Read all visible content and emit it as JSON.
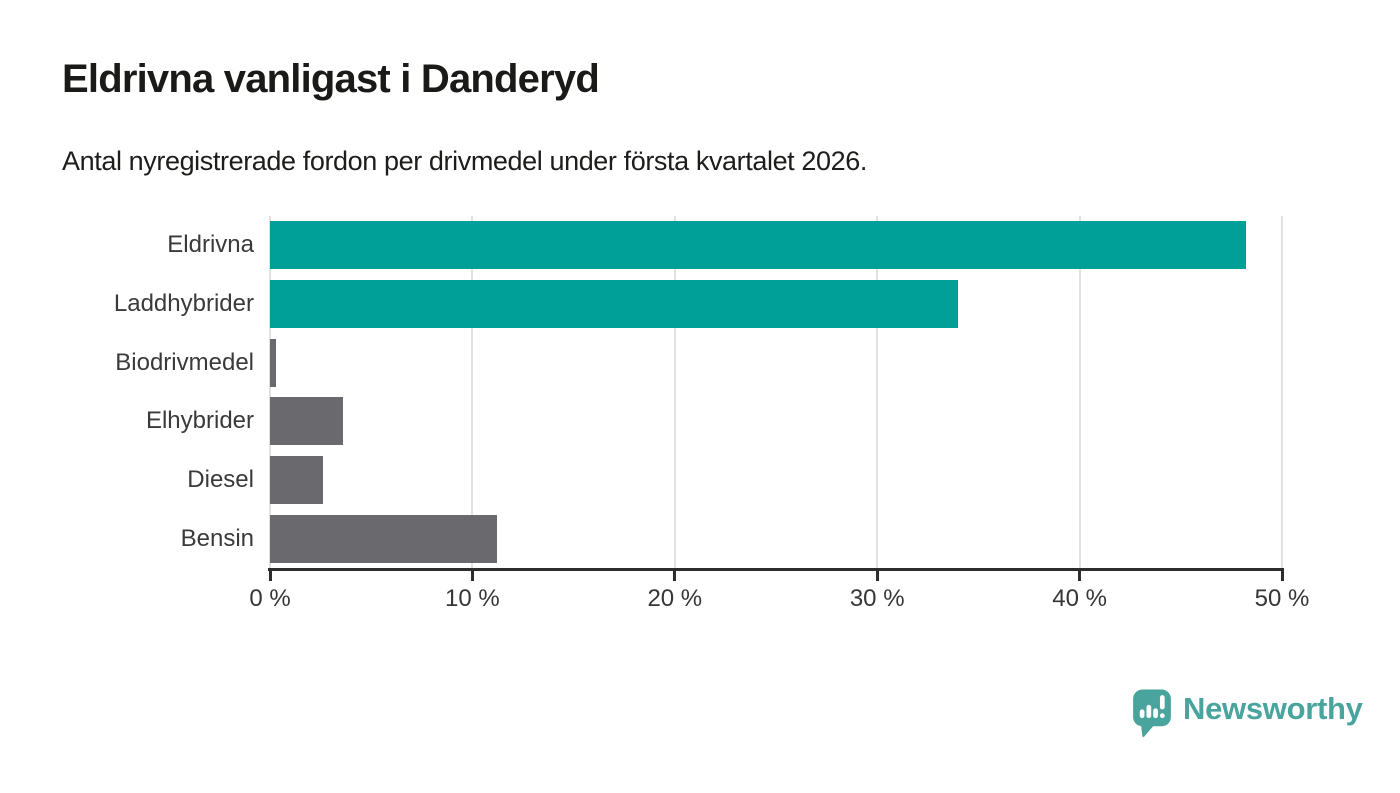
{
  "header": {
    "title": "Eldrivna vanligast i Danderyd",
    "subtitle": "Antal nyregistrerade fordon per drivmedel under första kvartalet 2026."
  },
  "chart_data": {
    "type": "bar",
    "orientation": "horizontal",
    "title": "Eldrivna vanligast i Danderyd",
    "subtitle": "Antal nyregistrerade fordon per drivmedel under första kvartalet 2026.",
    "categories": [
      "Eldrivna",
      "Laddhybrider",
      "Biodrivmedel",
      "Elhybrider",
      "Diesel",
      "Bensin"
    ],
    "values": [
      48.2,
      34.0,
      0.3,
      3.6,
      2.6,
      11.2
    ],
    "unit": "%",
    "series_colors": [
      "#00a099",
      "#00a099",
      "#6a6a6e",
      "#6a6a6e",
      "#6a6a6e",
      "#6a6a6e"
    ],
    "highlight_color": "#00a099",
    "default_color": "#6a6a6e",
    "xlim": [
      0,
      50
    ],
    "x_tick_values": [
      0,
      10,
      20,
      30,
      40,
      50
    ],
    "x_tick_labels": [
      "0 %",
      "10 %",
      "20 %",
      "30 %",
      "40 %",
      "50 %"
    ],
    "grid": true,
    "grid_color": "#e1e1e1",
    "axis_color": "#2d2d2d",
    "legend": "none"
  },
  "footer": {
    "brand": "Newsworthy",
    "brand_color": "#4aa49e",
    "icon": "newsworthy-speech-bubble-chart-icon"
  }
}
